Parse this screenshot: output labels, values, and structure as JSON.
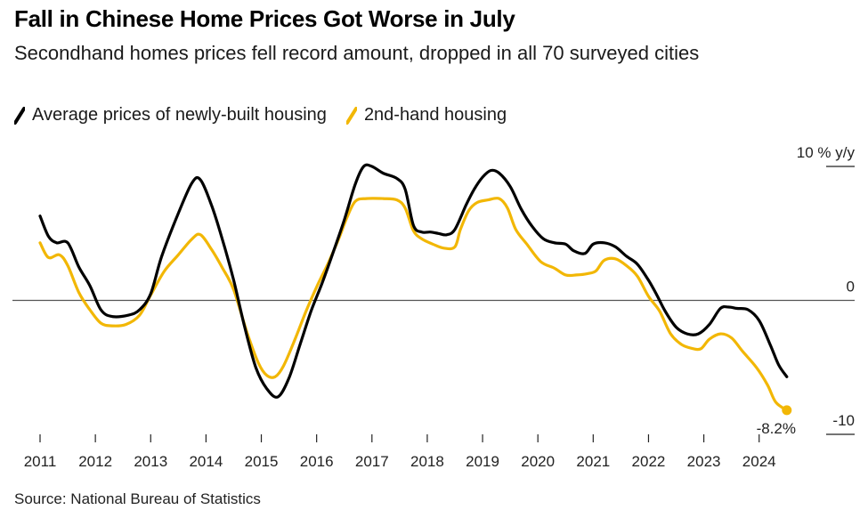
{
  "title": "Fall in Chinese Home Prices Got Worse in July",
  "subtitle": "Secondhand homes prices fell record amount, dropped in all 70 surveyed cities",
  "source": "Source: National Bureau of Statistics",
  "colors": {
    "new_housing": "#000000",
    "secondhand": "#f2b705",
    "zero_line": "#555555"
  },
  "chart_data": {
    "type": "line",
    "title": "Fall in Chinese Home Prices Got Worse in July",
    "ylabel": "% y/y",
    "ylim": [
      -10,
      10
    ],
    "yticks": [
      {
        "value": 10,
        "label": "10 % y/y"
      },
      {
        "value": 0,
        "label": "0"
      },
      {
        "value": -10,
        "label": "-10"
      }
    ],
    "xlim": [
      2011.0,
      2024.6
    ],
    "xticks": [
      "2011",
      "2012",
      "2013",
      "2014",
      "2015",
      "2016",
      "2017",
      "2018",
      "2019",
      "2020",
      "2021",
      "2022",
      "2023",
      "2024"
    ],
    "legend_position": "top-left",
    "annotation": {
      "text": "-8.2%",
      "x": 2024.5,
      "y": -8.2
    },
    "series": [
      {
        "name": "Average prices of newly-built housing",
        "color": "#000000",
        "points": [
          [
            2011.0,
            6.3
          ],
          [
            2011.15,
            4.8
          ],
          [
            2011.3,
            4.3
          ],
          [
            2011.5,
            4.3
          ],
          [
            2011.7,
            2.5
          ],
          [
            2011.9,
            1.1
          ],
          [
            2012.1,
            -0.7
          ],
          [
            2012.3,
            -1.2
          ],
          [
            2012.6,
            -1.1
          ],
          [
            2012.8,
            -0.7
          ],
          [
            2013.0,
            0.5
          ],
          [
            2013.2,
            3.3
          ],
          [
            2013.5,
            6.5
          ],
          [
            2013.75,
            8.8
          ],
          [
            2013.9,
            9.0
          ],
          [
            2014.1,
            7.1
          ],
          [
            2014.3,
            4.5
          ],
          [
            2014.5,
            1.5
          ],
          [
            2014.7,
            -2.0
          ],
          [
            2014.9,
            -5.0
          ],
          [
            2015.1,
            -6.6
          ],
          [
            2015.3,
            -7.2
          ],
          [
            2015.5,
            -5.8
          ],
          [
            2015.7,
            -3.3
          ],
          [
            2015.9,
            -0.8
          ],
          [
            2016.1,
            1.3
          ],
          [
            2016.3,
            3.6
          ],
          [
            2016.5,
            6.0
          ],
          [
            2016.7,
            8.7
          ],
          [
            2016.85,
            10.0
          ],
          [
            2017.0,
            10.0
          ],
          [
            2017.2,
            9.5
          ],
          [
            2017.45,
            9.1
          ],
          [
            2017.6,
            8.3
          ],
          [
            2017.75,
            5.6
          ],
          [
            2017.9,
            5.1
          ],
          [
            2018.05,
            5.1
          ],
          [
            2018.2,
            5.0
          ],
          [
            2018.35,
            4.9
          ],
          [
            2018.5,
            5.3
          ],
          [
            2018.7,
            7.1
          ],
          [
            2018.85,
            8.3
          ],
          [
            2019.0,
            9.2
          ],
          [
            2019.15,
            9.7
          ],
          [
            2019.3,
            9.5
          ],
          [
            2019.5,
            8.5
          ],
          [
            2019.7,
            6.8
          ],
          [
            2019.9,
            5.5
          ],
          [
            2020.1,
            4.6
          ],
          [
            2020.3,
            4.3
          ],
          [
            2020.5,
            4.2
          ],
          [
            2020.65,
            3.7
          ],
          [
            2020.85,
            3.5
          ],
          [
            2021.0,
            4.2
          ],
          [
            2021.2,
            4.3
          ],
          [
            2021.4,
            4.0
          ],
          [
            2021.6,
            3.3
          ],
          [
            2021.8,
            2.7
          ],
          [
            2022.0,
            1.5
          ],
          [
            2022.15,
            0.4
          ],
          [
            2022.3,
            -0.8
          ],
          [
            2022.5,
            -2.0
          ],
          [
            2022.7,
            -2.5
          ],
          [
            2022.9,
            -2.5
          ],
          [
            2023.1,
            -1.8
          ],
          [
            2023.3,
            -0.6
          ],
          [
            2023.45,
            -0.5
          ],
          [
            2023.6,
            -0.6
          ],
          [
            2023.8,
            -0.7
          ],
          [
            2024.0,
            -1.5
          ],
          [
            2024.2,
            -3.3
          ],
          [
            2024.35,
            -4.8
          ],
          [
            2024.5,
            -5.7
          ]
        ]
      },
      {
        "name": "2nd-hand housing",
        "color": "#f2b705",
        "points": [
          [
            2011.0,
            4.3
          ],
          [
            2011.15,
            3.2
          ],
          [
            2011.35,
            3.4
          ],
          [
            2011.5,
            2.6
          ],
          [
            2011.7,
            0.6
          ],
          [
            2011.9,
            -0.7
          ],
          [
            2012.1,
            -1.7
          ],
          [
            2012.3,
            -1.9
          ],
          [
            2012.55,
            -1.8
          ],
          [
            2012.8,
            -1.1
          ],
          [
            2013.0,
            0.4
          ],
          [
            2013.25,
            2.2
          ],
          [
            2013.5,
            3.4
          ],
          [
            2013.75,
            4.6
          ],
          [
            2013.9,
            4.9
          ],
          [
            2014.1,
            3.8
          ],
          [
            2014.3,
            2.4
          ],
          [
            2014.5,
            0.8
          ],
          [
            2014.75,
            -2.5
          ],
          [
            2014.95,
            -4.7
          ],
          [
            2015.1,
            -5.6
          ],
          [
            2015.25,
            -5.7
          ],
          [
            2015.4,
            -4.9
          ],
          [
            2015.6,
            -3.0
          ],
          [
            2015.8,
            -0.9
          ],
          [
            2016.0,
            1.0
          ],
          [
            2016.2,
            2.7
          ],
          [
            2016.4,
            4.6
          ],
          [
            2016.55,
            6.2
          ],
          [
            2016.7,
            7.4
          ],
          [
            2016.9,
            7.6
          ],
          [
            2017.2,
            7.6
          ],
          [
            2017.45,
            7.5
          ],
          [
            2017.6,
            6.9
          ],
          [
            2017.75,
            5.2
          ],
          [
            2017.9,
            4.6
          ],
          [
            2018.1,
            4.2
          ],
          [
            2018.3,
            3.9
          ],
          [
            2018.5,
            4.0
          ],
          [
            2018.6,
            5.3
          ],
          [
            2018.75,
            6.7
          ],
          [
            2018.9,
            7.3
          ],
          [
            2019.1,
            7.5
          ],
          [
            2019.3,
            7.6
          ],
          [
            2019.45,
            6.9
          ],
          [
            2019.6,
            5.3
          ],
          [
            2019.8,
            4.2
          ],
          [
            2020.05,
            2.9
          ],
          [
            2020.3,
            2.4
          ],
          [
            2020.5,
            1.9
          ],
          [
            2020.7,
            1.9
          ],
          [
            2020.9,
            2.0
          ],
          [
            2021.05,
            2.2
          ],
          [
            2021.2,
            3.0
          ],
          [
            2021.4,
            3.1
          ],
          [
            2021.6,
            2.6
          ],
          [
            2021.8,
            1.8
          ],
          [
            2022.0,
            0.3
          ],
          [
            2022.2,
            -0.8
          ],
          [
            2022.4,
            -2.5
          ],
          [
            2022.6,
            -3.3
          ],
          [
            2022.8,
            -3.6
          ],
          [
            2022.95,
            -3.6
          ],
          [
            2023.1,
            -2.9
          ],
          [
            2023.3,
            -2.5
          ],
          [
            2023.5,
            -2.8
          ],
          [
            2023.7,
            -3.8
          ],
          [
            2023.95,
            -5.0
          ],
          [
            2024.15,
            -6.3
          ],
          [
            2024.3,
            -7.6
          ],
          [
            2024.5,
            -8.2
          ]
        ]
      }
    ]
  }
}
